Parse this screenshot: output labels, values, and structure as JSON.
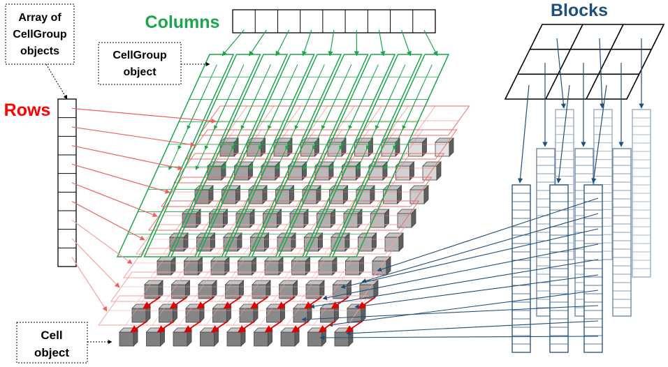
{
  "labels": {
    "columns": "Columns",
    "blocks": "Blocks",
    "rows": "Rows",
    "array_line1": "Array of",
    "array_line2": "CellGroup",
    "array_line3": "objects",
    "cellgroup_line1": "CellGroup",
    "cellgroup_line2": "object",
    "cell_line1": "Cell",
    "cell_line2": "object"
  },
  "colors": {
    "columns": "#1aa64a",
    "rows": "#f04040",
    "blocks": "#1f4e79",
    "cube_dark": "#7f7f7f",
    "cube_light": "#d9d9d9",
    "red_arrow": "#e00000"
  }
}
